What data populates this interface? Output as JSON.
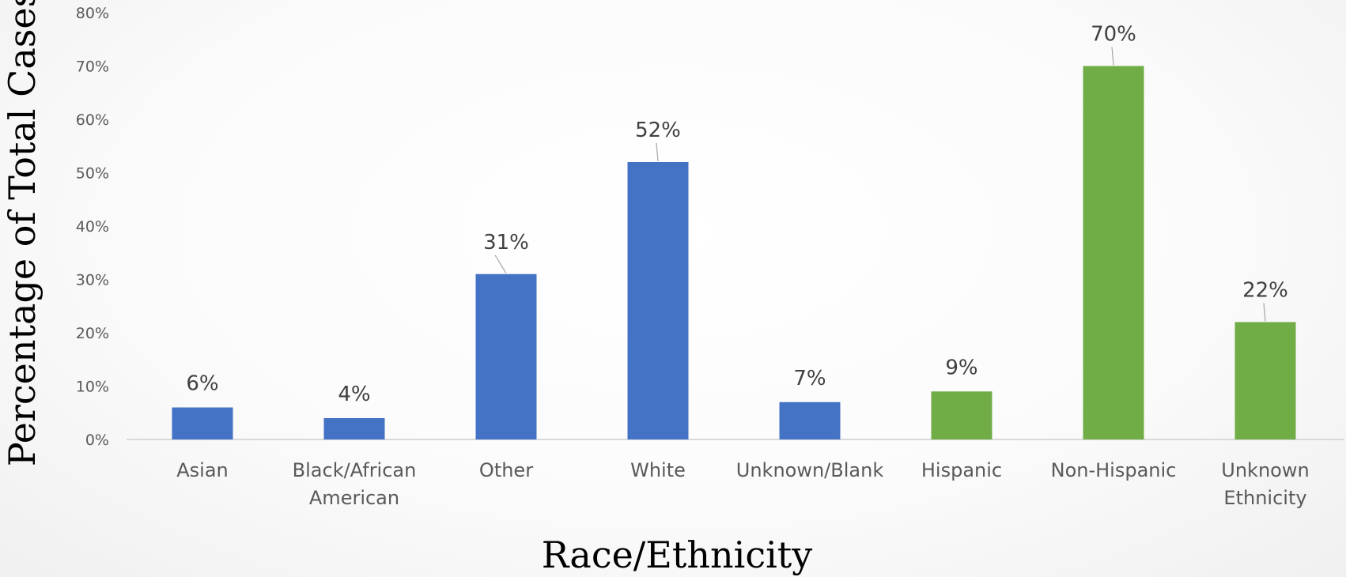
{
  "colors": {
    "race": "#4472C4",
    "ethnicity": "#70AD47",
    "axis_line": "#D9D9D9",
    "leader_line": "#A6A6A6"
  },
  "chart_data": {
    "type": "bar",
    "title": "",
    "xlabel": "Race/Ethnicity",
    "ylabel": "Percentage of Total Cases",
    "ylim": [
      0,
      80
    ],
    "yticks": [
      0,
      10,
      20,
      30,
      40,
      50,
      60,
      70,
      80
    ],
    "ytick_labels": [
      "0%",
      "10%",
      "20%",
      "30%",
      "40%",
      "50%",
      "60%",
      "70%",
      "80%"
    ],
    "grid": false,
    "legend": "none",
    "categories": [
      {
        "label": [
          "Asian"
        ],
        "value": 6,
        "data_label": "6%",
        "color": "#4472C4"
      },
      {
        "label": [
          "Black/African",
          "American"
        ],
        "value": 4,
        "data_label": "4%",
        "color": "#4472C4"
      },
      {
        "label": [
          "Other"
        ],
        "value": 31,
        "data_label": "31%",
        "color": "#4472C4"
      },
      {
        "label": [
          "White"
        ],
        "value": 52,
        "data_label": "52%",
        "color": "#4472C4"
      },
      {
        "label": [
          "Unknown/Blank"
        ],
        "value": 7,
        "data_label": "7%",
        "color": "#4472C4"
      },
      {
        "label": [
          "Hispanic"
        ],
        "value": 9,
        "data_label": "9%",
        "color": "#70AD47"
      },
      {
        "label": [
          "Non-Hispanic"
        ],
        "value": 70,
        "data_label": "70%",
        "color": "#70AD47"
      },
      {
        "label": [
          "Unknown",
          "Ethnicity"
        ],
        "value": 22,
        "data_label": "22%",
        "color": "#70AD47"
      }
    ]
  }
}
